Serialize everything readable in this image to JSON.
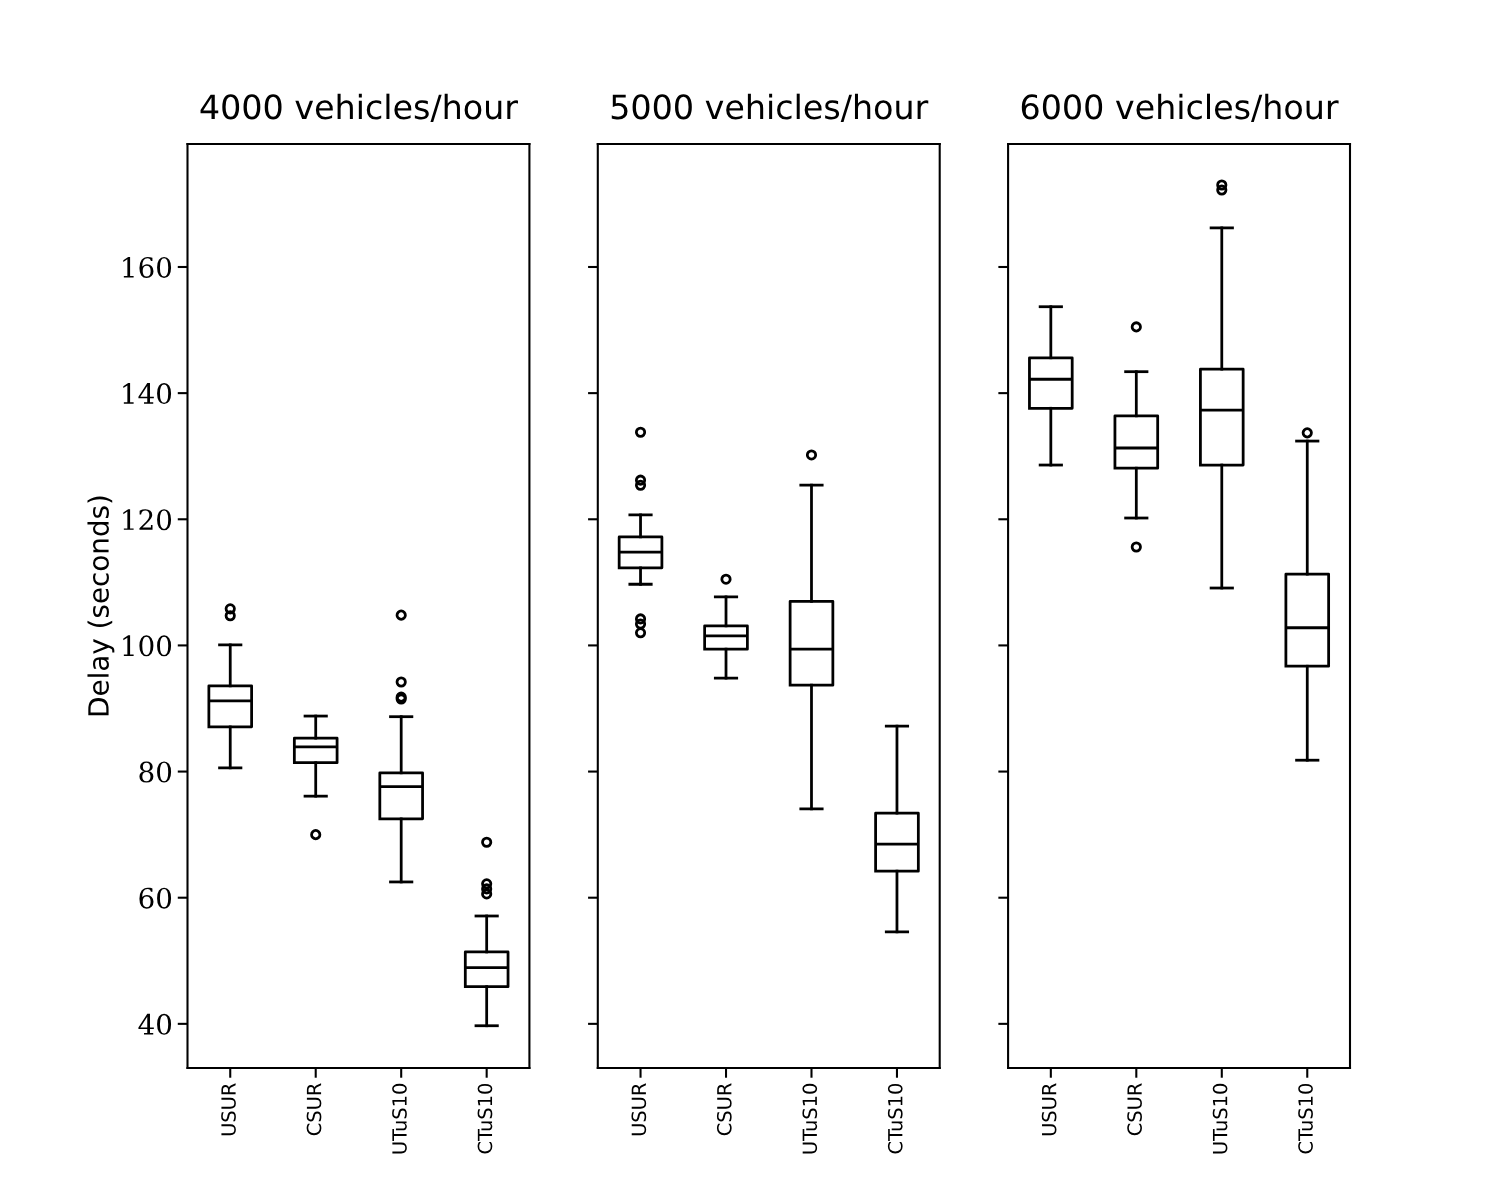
{
  "chart_data": [
    {
      "type": "box",
      "title": "4000 vehicles/hour",
      "ylabel": "Delay (seconds)",
      "categories": [
        "USUR",
        "CSUR",
        "UTuS10",
        "CTuS10"
      ],
      "ylim": [
        33,
        179.5
      ],
      "yticks": [
        40,
        60,
        80,
        100,
        120,
        140,
        160
      ],
      "grid": false,
      "boxes": [
        {
          "low": 80.6,
          "q1": 87.1,
          "median": 91.2,
          "q3": 93.6,
          "high": 100.1,
          "outliers": [
            105.8,
            104.7
          ]
        },
        {
          "low": 76.1,
          "q1": 81.4,
          "median": 83.9,
          "q3": 85.3,
          "high": 88.8,
          "outliers": [
            70.0
          ]
        },
        {
          "low": 62.5,
          "q1": 72.5,
          "median": 77.6,
          "q3": 79.8,
          "high": 88.7,
          "outliers": [
            104.8,
            94.2,
            91.8,
            91.5
          ]
        },
        {
          "low": 39.7,
          "q1": 45.9,
          "median": 48.9,
          "q3": 51.4,
          "high": 57.1,
          "outliers": [
            68.8,
            62.2,
            61.4,
            60.6
          ]
        }
      ]
    },
    {
      "type": "box",
      "title": "5000 vehicles/hour",
      "categories": [
        "USUR",
        "CSUR",
        "UTuS10",
        "CTuS10"
      ],
      "ylim": [
        33,
        179.5
      ],
      "yticks": [
        40,
        60,
        80,
        100,
        120,
        140,
        160
      ],
      "tick_labels": "x",
      "grid": false,
      "boxes": [
        {
          "low": 109.7,
          "q1": 112.3,
          "median": 114.8,
          "q3": 117.2,
          "high": 120.7,
          "outliers": [
            133.8,
            126.2,
            125.4,
            104.2,
            103.4,
            102.0
          ]
        },
        {
          "low": 94.8,
          "q1": 99.4,
          "median": 101.5,
          "q3": 103.1,
          "high": 107.7,
          "outliers": [
            110.5
          ]
        },
        {
          "low": 74.1,
          "q1": 93.7,
          "median": 99.4,
          "q3": 107.0,
          "high": 125.4,
          "outliers": [
            130.2
          ]
        },
        {
          "low": 54.6,
          "q1": 64.2,
          "median": 68.5,
          "q3": 73.4,
          "high": 87.2
        }
      ]
    },
    {
      "type": "box",
      "title": "6000 vehicles/hour",
      "categories": [
        "USUR",
        "CSUR",
        "UTuS10",
        "CTuS10"
      ],
      "ylim": [
        33,
        179.5
      ],
      "yticks": [
        40,
        60,
        80,
        100,
        120,
        140,
        160
      ],
      "tick_labels": "x",
      "grid": false,
      "boxes": [
        {
          "low": 128.6,
          "q1": 137.6,
          "median": 142.2,
          "q3": 145.6,
          "high": 153.7
        },
        {
          "low": 120.2,
          "q1": 128.1,
          "median": 131.3,
          "q3": 136.4,
          "high": 143.4,
          "outliers": [
            150.5,
            115.6
          ]
        },
        {
          "low": 109.1,
          "q1": 128.6,
          "median": 137.3,
          "q3": 143.8,
          "high": 166.2,
          "outliers": [
            173.0,
            172.2
          ]
        },
        {
          "low": 81.8,
          "q1": 96.7,
          "median": 102.8,
          "q3": 111.3,
          "high": 132.4,
          "outliers": [
            133.7
          ]
        }
      ]
    }
  ]
}
